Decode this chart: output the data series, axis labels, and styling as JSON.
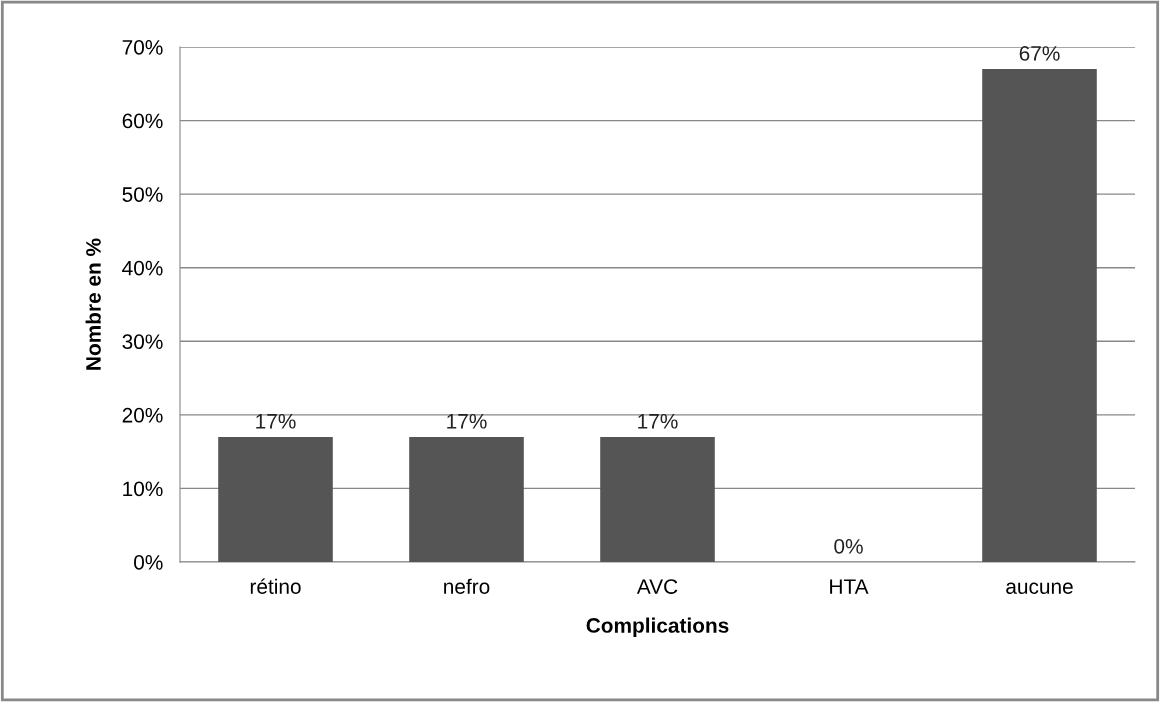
{
  "chart_data": {
    "type": "bar",
    "xlabel": "Complications",
    "ylabel": "Nombre en %",
    "categories": [
      "rétino",
      "nefro",
      "AVC",
      "HTA",
      "aucune"
    ],
    "values": [
      17,
      17,
      17,
      0,
      67
    ],
    "color": "#555555",
    "value_labels": [
      "17%",
      "17%",
      "17%",
      "0%",
      "67%"
    ],
    "ylim": [
      0,
      70
    ],
    "yticks": [
      {
        "value": 0,
        "label": "0%"
      },
      {
        "value": 10,
        "label": "10%"
      },
      {
        "value": 20,
        "label": "20%"
      },
      {
        "value": 30,
        "label": "30%"
      },
      {
        "value": 40,
        "label": "40%"
      },
      {
        "value": 50,
        "label": "50%"
      },
      {
        "value": 60,
        "label": "60%"
      },
      {
        "value": 70,
        "label": "70%"
      }
    ],
    "grid": "y"
  }
}
